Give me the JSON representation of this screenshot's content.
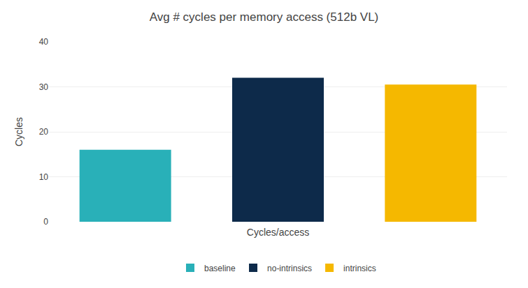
{
  "chart_data": {
    "type": "bar",
    "title": "Avg # cycles per memory access (512b VL)",
    "xlabel": "Cycles/access",
    "ylabel": "Cycles",
    "categories": [
      "baseline",
      "no-intrinsics",
      "intrinsics"
    ],
    "values": [
      16.0,
      32.0,
      30.5
    ],
    "colors": [
      "#29b0b8",
      "#0d2a4a",
      "#f5b800"
    ],
    "ylim": [
      0,
      40
    ],
    "yticks": [
      0,
      10,
      20,
      30,
      40
    ],
    "grid": true,
    "legend": "bottom",
    "tick_labels": "y"
  }
}
